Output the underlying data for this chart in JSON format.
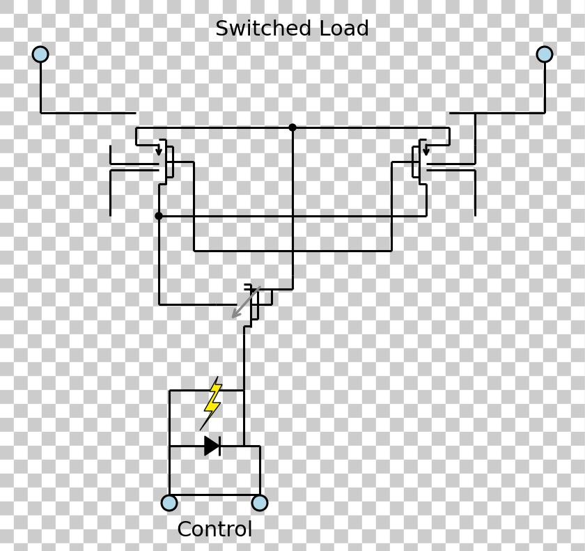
{
  "bg_color": "#ffffff",
  "line_color": "#000000",
  "line_width": 2.2,
  "title_switched": "Switched Load",
  "title_control": "Control",
  "title_fontsize": 22,
  "checker_color1": "#cccccc",
  "checker_color2": "#ffffff",
  "terminal_color": "#b0d8e8",
  "dot_color": "#000000",
  "arrow_gray": "#888888",
  "bolt_yellow": "#ffee00",
  "bolt_outline": "#000000"
}
